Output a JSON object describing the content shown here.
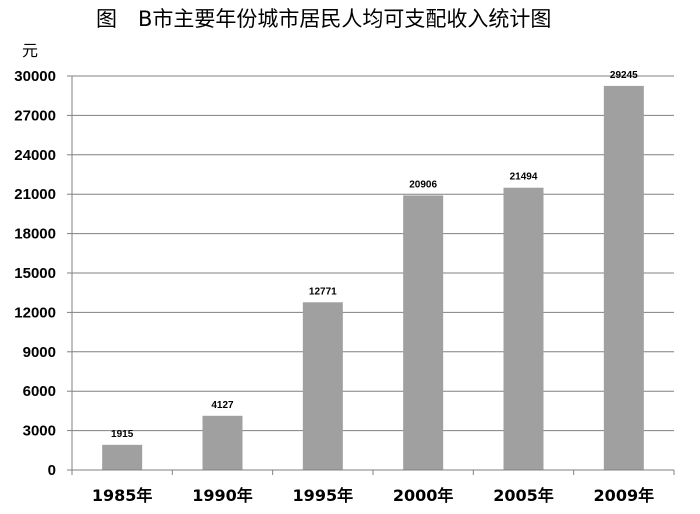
{
  "chart_data": {
    "type": "bar",
    "title": "图　B市主要年份城市居民人均可支配收入统计图",
    "ylabel": "元",
    "xlabel": "",
    "categories": [
      "1985年",
      "1990年",
      "1995年",
      "2000年",
      "2005年",
      "2009年"
    ],
    "values": [
      1915,
      4127,
      12771,
      20906,
      21494,
      29245
    ],
    "data_labels": [
      "1915",
      "4127",
      "12771",
      "20906",
      "21494",
      "29245"
    ],
    "ylim": [
      0,
      30000
    ],
    "yticks": [
      "0",
      "3000",
      "6000",
      "9000",
      "12000",
      "15000",
      "18000",
      "21000",
      "24000",
      "27000",
      "30000"
    ],
    "grid": true,
    "legend": "none",
    "bar_color": "#a0a0a0"
  }
}
